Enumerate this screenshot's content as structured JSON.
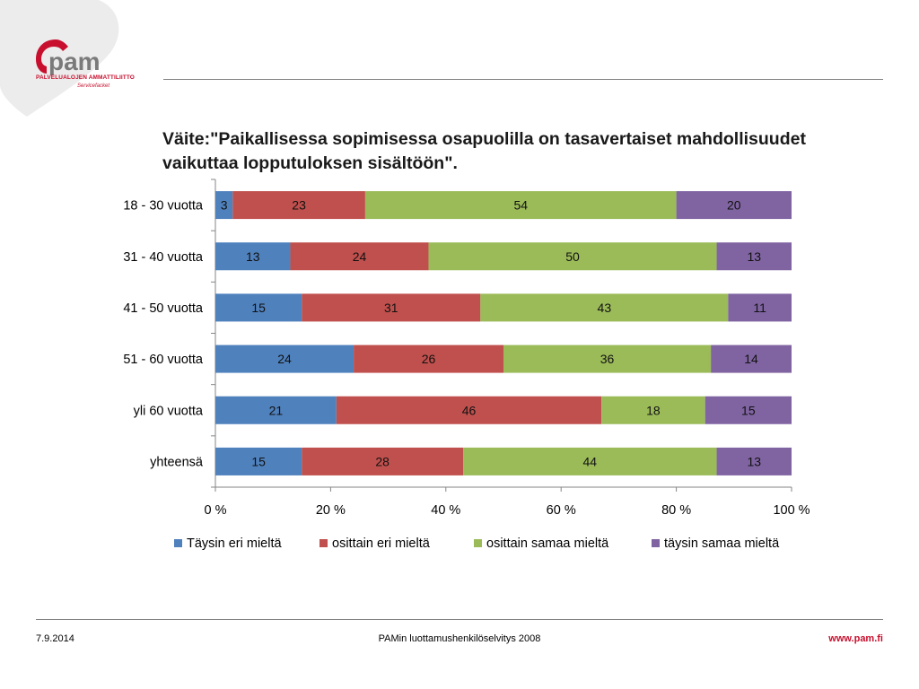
{
  "branding": {
    "logo_text": "pam",
    "org_name": "PALVELUALOJEN AMMATTILIITTO",
    "org_sub": "Servicefacket",
    "brand_color": "#c8102e"
  },
  "chart_data": {
    "type": "bar",
    "orientation": "horizontal",
    "stacked": "percent",
    "title": "Väite:\"Paikallisessa sopimisessa osapuolilla on tasavertaiset mahdollisuudet vaikuttaa lopputuloksen sisältöön\".",
    "categories": [
      "18 - 30 vuotta",
      "31 - 40 vuotta",
      "41 - 50 vuotta",
      "51 - 60 vuotta",
      "yli 60 vuotta",
      "yhteensä"
    ],
    "series": [
      {
        "name": "Täysin eri mieltä",
        "color": "#4f81bd",
        "values": [
          3,
          13,
          15,
          24,
          21,
          15
        ]
      },
      {
        "name": "osittain eri mieltä",
        "color": "#c0504d",
        "values": [
          23,
          24,
          31,
          26,
          46,
          28
        ]
      },
      {
        "name": "osittain samaa mieltä",
        "color": "#9bbb59",
        "values": [
          54,
          50,
          43,
          36,
          18,
          44
        ]
      },
      {
        "name": "täysin samaa mieltä",
        "color": "#8064a2",
        "values": [
          20,
          13,
          11,
          14,
          15,
          13
        ]
      }
    ],
    "xlim": [
      0,
      100
    ],
    "xticks": [
      "0 %",
      "20 %",
      "40 %",
      "60 %",
      "80 %",
      "100 %"
    ],
    "data_labels": true,
    "grid": false,
    "legend_position": "bottom"
  },
  "footer": {
    "date": "7.9.2014",
    "center": "PAMin luottamushenkilöselvitys 2008",
    "url": "www.pam.fi"
  }
}
